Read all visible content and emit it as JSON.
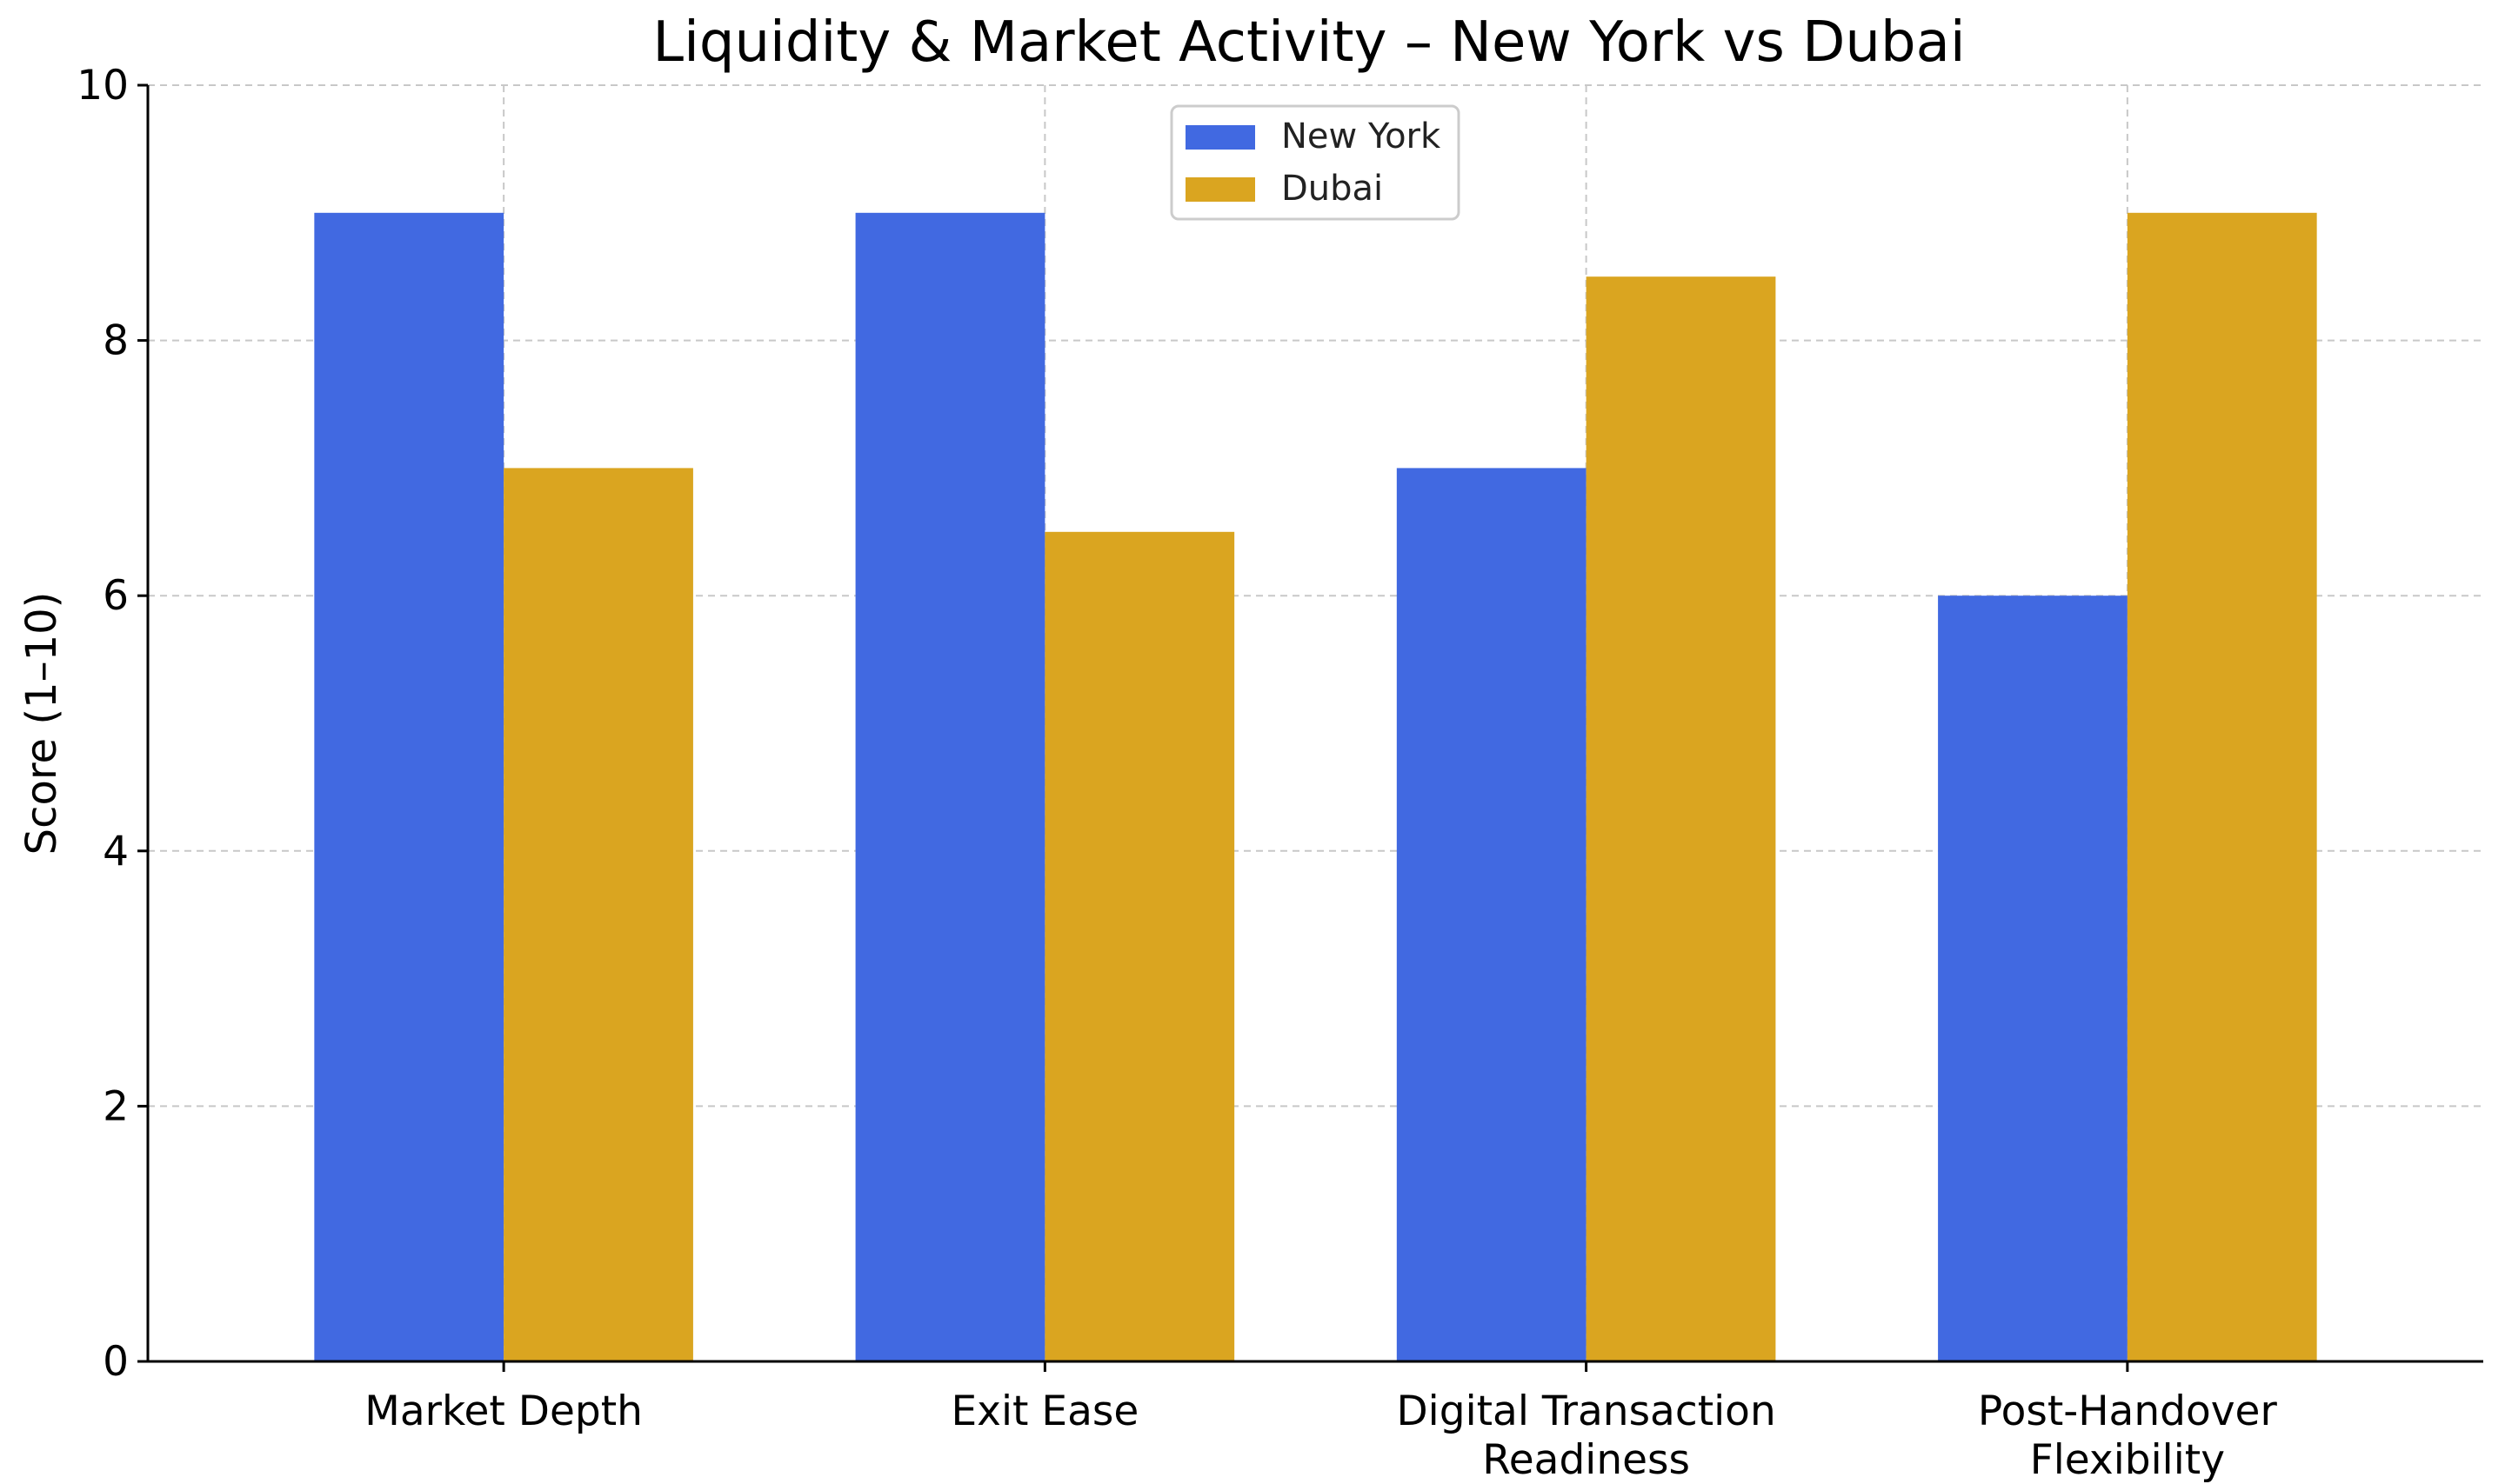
{
  "chart_data": {
    "type": "bar",
    "title": "Liquidity & Market Activity – New York vs Dubai",
    "xlabel": "",
    "ylabel": "Score (1–10)",
    "ylim": [
      0,
      10
    ],
    "yticks": [
      0,
      2,
      4,
      6,
      8,
      10
    ],
    "grid": true,
    "legend_position": "top-center",
    "categories": [
      [
        "Market Depth"
      ],
      [
        "Exit Ease"
      ],
      [
        "Digital Transaction",
        "Readiness"
      ],
      [
        "Post-Handover",
        "Flexibility"
      ]
    ],
    "series": [
      {
        "name": "New York",
        "color": "#4169E1",
        "values": [
          9,
          9,
          7,
          6
        ]
      },
      {
        "name": "Dubai",
        "color": "#DAA520",
        "values": [
          7,
          6.5,
          8.5,
          9
        ]
      }
    ]
  }
}
